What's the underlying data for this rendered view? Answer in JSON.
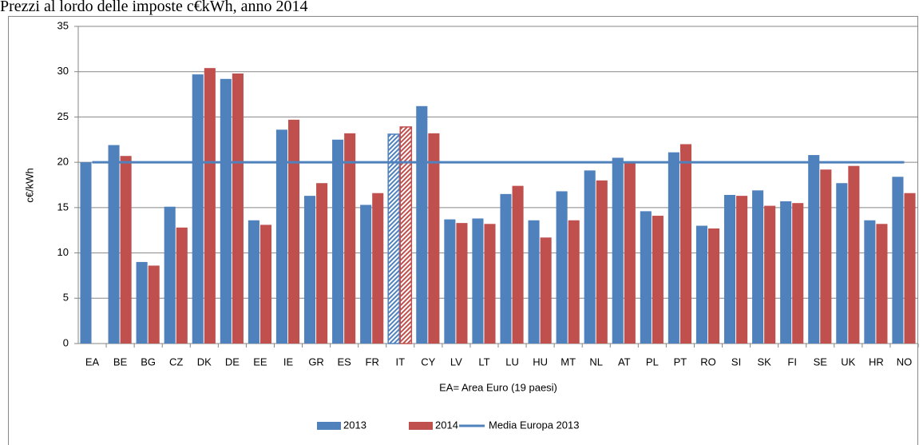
{
  "chart_data": {
    "type": "bar",
    "title": "Prezzi al lordo delle imposte c€kWh, anno 2014",
    "x_label": "EA= Area Euro (19 paesi)",
    "y_label": "c€/kWh",
    "categories": [
      "EA",
      "BE",
      "BG",
      "CZ",
      "DK",
      "DE",
      "EE",
      "IE",
      "GR",
      "ES",
      "FR",
      "IT",
      "CY",
      "LV",
      "LT",
      "LU",
      "HU",
      "MT",
      "NL",
      "AT",
      "PL",
      "PT",
      "RO",
      "SI",
      "SK",
      "FI",
      "SE",
      "UK",
      "HR",
      "NO"
    ],
    "highlight_category": "IT",
    "series": [
      {
        "name": "2013",
        "type": "bar",
        "color": "#4f81bd",
        "values": [
          20.0,
          21.9,
          9.0,
          15.1,
          29.7,
          29.2,
          13.6,
          23.6,
          16.3,
          22.5,
          15.3,
          23.1,
          26.2,
          13.7,
          13.8,
          16.5,
          13.6,
          16.8,
          19.1,
          20.5,
          14.6,
          21.1,
          13.0,
          16.4,
          16.9,
          15.7,
          20.8,
          17.7,
          13.6,
          18.4
        ]
      },
      {
        "name": "2014",
        "type": "bar",
        "color": "#c0504d",
        "values": [
          null,
          20.7,
          8.6,
          12.8,
          30.4,
          29.8,
          13.1,
          24.7,
          17.7,
          23.2,
          16.6,
          23.9,
          23.2,
          13.3,
          13.2,
          17.4,
          11.7,
          13.6,
          18.0,
          20.0,
          14.1,
          22.0,
          12.7,
          16.3,
          15.2,
          15.5,
          19.2,
          19.6,
          13.2,
          16.6
        ]
      },
      {
        "name": "Media Europa 2013",
        "type": "line",
        "color": "#4f81bd",
        "values": [
          20,
          20,
          20,
          20,
          20,
          20,
          20,
          20,
          20,
          20,
          20,
          20,
          20,
          20,
          20,
          20,
          20,
          20,
          20,
          20,
          20,
          20,
          20,
          20,
          20,
          20,
          20,
          20,
          20,
          20
        ]
      }
    ],
    "ylim": [
      0,
      35
    ],
    "yticks": [
      0,
      5,
      10,
      15,
      20,
      25,
      30,
      35
    ],
    "grid": true,
    "legend": "bottom"
  }
}
